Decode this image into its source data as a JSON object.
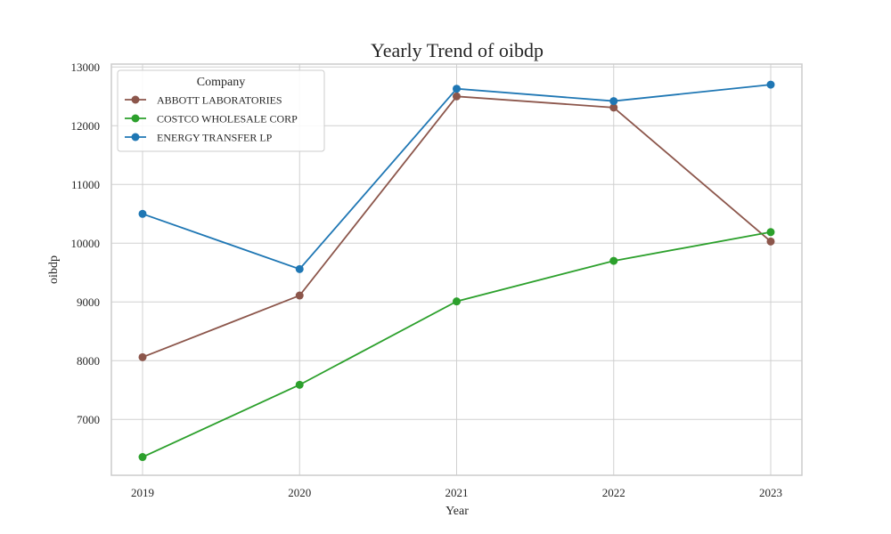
{
  "chart_data": {
    "type": "line",
    "title": "Yearly Trend of oibdp",
    "xlabel": "Year",
    "ylabel": "oibdp",
    "categories": [
      "2019",
      "2020",
      "2021",
      "2022",
      "2023"
    ],
    "ylim": [
      6050,
      13050
    ],
    "yticks": [
      7000,
      8000,
      9000,
      10000,
      11000,
      12000,
      13000
    ],
    "grid": true,
    "legend": {
      "title": "Company",
      "placement": "top-left"
    },
    "series": [
      {
        "name": "ABBOTT LABORATORIES",
        "color": "#8c564b",
        "values": [
          8060,
          9110,
          12500,
          12310,
          10030
        ]
      },
      {
        "name": "COSTCO WHOLESALE CORP",
        "color": "#2ca02c",
        "values": [
          6360,
          7590,
          9010,
          9700,
          10190
        ]
      },
      {
        "name": "ENERGY TRANSFER LP",
        "color": "#1f77b4",
        "values": [
          10500,
          9560,
          12630,
          12420,
          12700
        ]
      }
    ]
  }
}
